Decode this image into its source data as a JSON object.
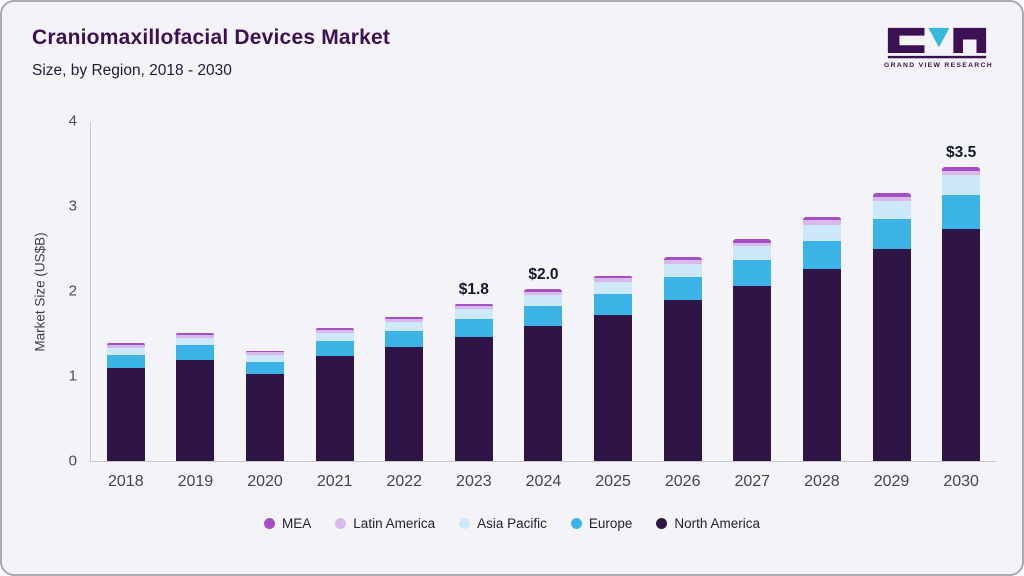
{
  "header": {
    "title": "Craniomaxillofacial Devices Market",
    "subtitle": "Size, by Region, 2018 - 2030",
    "logo_text": "GRAND VIEW RESEARCH"
  },
  "colors": {
    "background": "#f4f4f8",
    "title": "#3d1054",
    "axis": "#c7c7d2"
  },
  "chart_data": {
    "type": "bar",
    "stacked": true,
    "title": "Craniomaxillofacial Devices Market Size, by Region, 2018 - 2030",
    "xlabel": "",
    "ylabel": "Market Size (US$B)",
    "ylim": [
      0,
      4
    ],
    "yticks": [
      0,
      1,
      2,
      3,
      4
    ],
    "grid": false,
    "legend_position": "bottom",
    "categories": [
      "2018",
      "2019",
      "2020",
      "2021",
      "2022",
      "2023",
      "2024",
      "2025",
      "2026",
      "2027",
      "2028",
      "2029",
      "2030"
    ],
    "series": [
      {
        "name": "North America",
        "color": "#2f1545",
        "values": [
          1.09,
          1.19,
          1.02,
          1.23,
          1.34,
          1.46,
          1.59,
          1.72,
          1.89,
          2.06,
          2.26,
          2.49,
          2.73
        ]
      },
      {
        "name": "Europe",
        "color": "#3bb3e6",
        "values": [
          0.16,
          0.17,
          0.15,
          0.18,
          0.19,
          0.21,
          0.23,
          0.25,
          0.27,
          0.3,
          0.33,
          0.36,
          0.4
        ]
      },
      {
        "name": "Asia Pacific",
        "color": "#cde9f9",
        "values": [
          0.08,
          0.09,
          0.08,
          0.1,
          0.11,
          0.12,
          0.13,
          0.14,
          0.16,
          0.17,
          0.19,
          0.21,
          0.23
        ]
      },
      {
        "name": "Latin America",
        "color": "#d8b9ea",
        "values": [
          0.03,
          0.03,
          0.03,
          0.03,
          0.03,
          0.03,
          0.04,
          0.04,
          0.04,
          0.04,
          0.05,
          0.05,
          0.05
        ]
      },
      {
        "name": "MEA",
        "color": "#a44fc6",
        "values": [
          0.03,
          0.03,
          0.02,
          0.03,
          0.03,
          0.03,
          0.03,
          0.03,
          0.04,
          0.04,
          0.04,
          0.04,
          0.05
        ]
      }
    ],
    "annotations": [
      {
        "category": "2023",
        "label": "$1.8"
      },
      {
        "category": "2024",
        "label": "$2.0"
      },
      {
        "category": "2030",
        "label": "$3.5"
      }
    ],
    "legend": [
      "MEA",
      "Latin America",
      "Asia Pacific",
      "Europe",
      "North America"
    ]
  }
}
